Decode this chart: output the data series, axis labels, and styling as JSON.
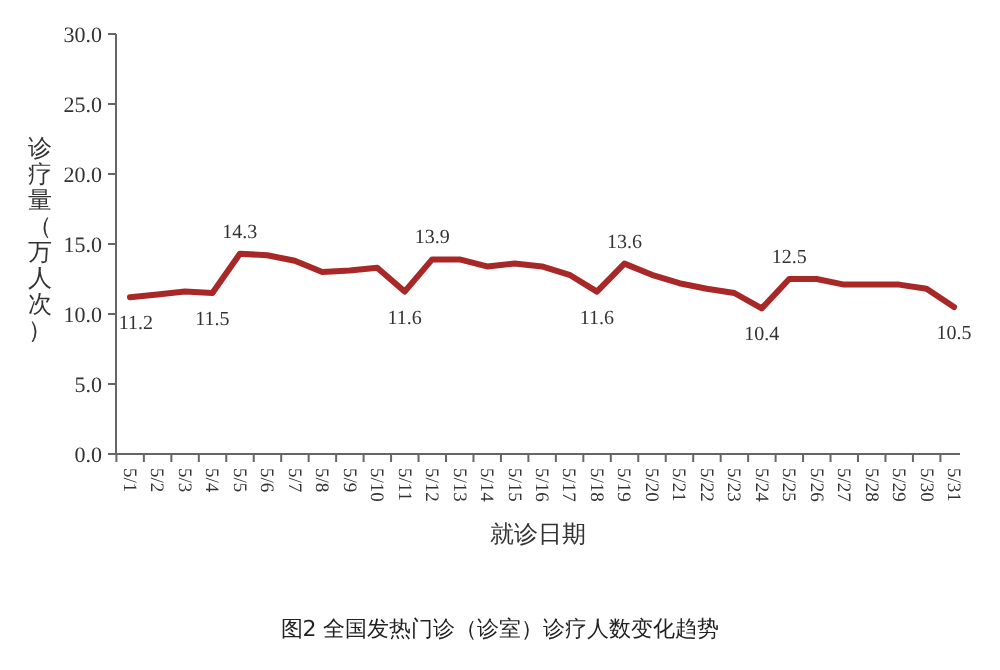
{
  "chart_data": {
    "type": "line",
    "xlabel": "就诊日期",
    "ylabel": "诊疗量（万人次）",
    "categories": [
      "5/1",
      "5/2",
      "5/3",
      "5/4",
      "5/5",
      "5/6",
      "5/7",
      "5/8",
      "5/9",
      "5/10",
      "5/11",
      "5/12",
      "5/13",
      "5/14",
      "5/15",
      "5/16",
      "5/17",
      "5/18",
      "5/19",
      "5/20",
      "5/21",
      "5/22",
      "5/23",
      "5/24",
      "5/25",
      "5/26",
      "5/27",
      "5/28",
      "5/29",
      "5/30",
      "5/31"
    ],
    "series": [
      {
        "color": "#a82828",
        "values": [
          11.2,
          11.4,
          11.6,
          11.5,
          14.3,
          14.2,
          13.8,
          13.0,
          13.1,
          13.3,
          11.6,
          13.9,
          13.9,
          13.4,
          13.6,
          13.4,
          12.8,
          11.6,
          13.6,
          12.8,
          12.2,
          11.8,
          11.5,
          10.4,
          12.5,
          12.5,
          12.1,
          12.1,
          12.1,
          11.8,
          10.5
        ],
        "value_labels": [
          "11.2",
          null,
          null,
          "11.5",
          "14.3",
          null,
          null,
          null,
          null,
          null,
          "11.6",
          "13.9",
          null,
          null,
          null,
          null,
          null,
          "11.6",
          "13.6",
          null,
          null,
          null,
          null,
          "10.4",
          "12.5",
          null,
          null,
          null,
          null,
          null,
          "10.5"
        ]
      }
    ],
    "ylim": [
      0,
      30
    ],
    "yticks": [
      {
        "value": 0,
        "label": "0.0"
      },
      {
        "value": 5,
        "label": "5.0"
      },
      {
        "value": 10,
        "label": "10.0"
      },
      {
        "value": 15,
        "label": "15.0"
      },
      {
        "value": 20,
        "label": "20.0"
      },
      {
        "value": 25,
        "label": "25.0"
      },
      {
        "value": 30,
        "label": "30.0"
      }
    ],
    "grid": false,
    "marker": "none",
    "line_style": "solid",
    "annotations": [
      "图2 全国发热门诊（诊室）诊疗人数变化趋势"
    ]
  }
}
